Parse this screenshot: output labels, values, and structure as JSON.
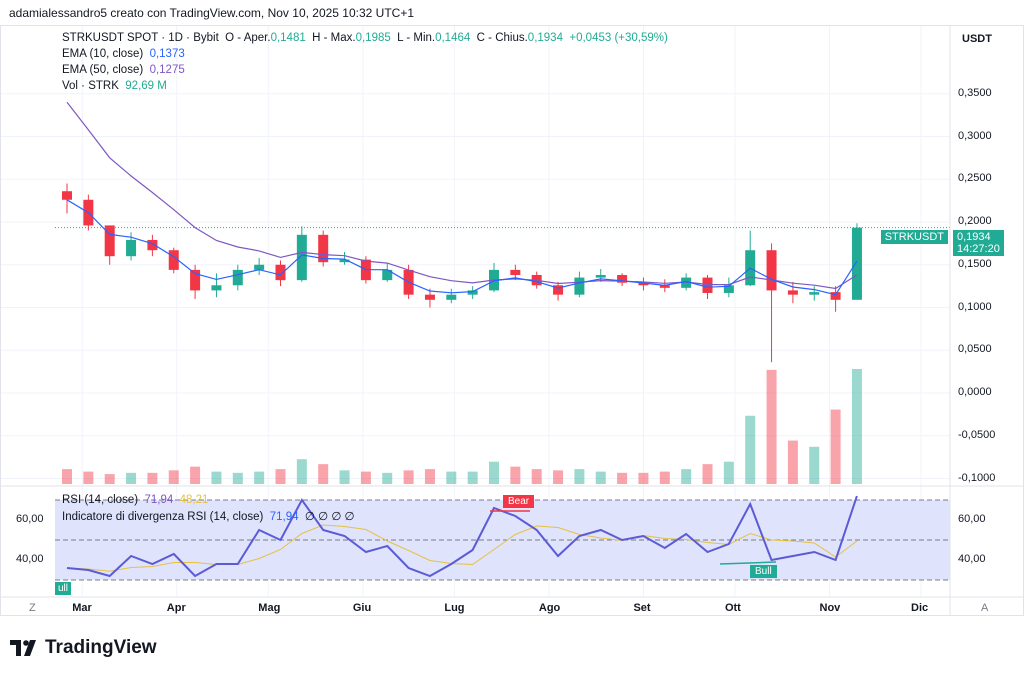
{
  "credit": "adamialessandro5 creato con TradingView.com, Nov 10, 2025 10:32 UTC+1",
  "legend": {
    "symbol": "STRKUSDT SPOT · 1D · Bybit",
    "open_label": "O - Aper.",
    "open": "0,1481",
    "high_label": "H - Max.",
    "high": "0,1985",
    "low_label": "L - Min.",
    "low": "0,1464",
    "close_label": "C - Chius.",
    "close": "0,1934",
    "change": "+0,0453 (+30,59%)",
    "ema10_label": "EMA (10, close)",
    "ema10": "0,1373",
    "ema50_label": "EMA (50, close)",
    "ema50": "0,1275",
    "vol_label": "Vol · STRK",
    "vol": "92,69 M"
  },
  "rsi_legend": {
    "rsi_label": "RSI (14, close)",
    "rsi": "71,94",
    "rsi_ma": "48,21",
    "div_label": "Indicatore di divergenza RSI (14, close)",
    "div_value": "71,94",
    "div_flags": "∅ ∅ ∅ ∅"
  },
  "price_axis": {
    "unit": "USDT",
    "ticks": [
      "0,3500",
      "0,3000",
      "0,2500",
      "0,2000",
      "0,1500",
      "0,1000",
      "0,0500",
      "0,0000",
      "-0,0500",
      "-0,1000"
    ],
    "tick_values": [
      0.35,
      0.3,
      0.25,
      0.2,
      0.15,
      0.1,
      0.05,
      0,
      -0.05,
      -0.1
    ],
    "last_symbol": "STRKUSDT",
    "last_price": "0,1934",
    "countdown": "14:27:20"
  },
  "rsi_axis": {
    "ticks": [
      "60,00",
      "40,00"
    ],
    "tick_values": [
      60,
      40
    ],
    "bands": [
      70,
      50,
      30
    ]
  },
  "time_axis": {
    "left_button": "Z",
    "right_button": "A",
    "ticks": [
      {
        "label": "Mar",
        "date": "2025-03-01"
      },
      {
        "label": "Apr",
        "date": "2025-04-01"
      },
      {
        "label": "Mag",
        "date": "2025-05-01"
      },
      {
        "label": "Giu",
        "date": "2025-06-01"
      },
      {
        "label": "Lug",
        "date": "2025-07-01"
      },
      {
        "label": "Ago",
        "date": "2025-08-01"
      },
      {
        "label": "Set",
        "date": "2025-09-01"
      },
      {
        "label": "Ott",
        "date": "2025-10-01"
      },
      {
        "label": "Nov",
        "date": "2025-11-01"
      },
      {
        "label": "Dic",
        "date": "2025-12-01"
      }
    ]
  },
  "divergence_labels": {
    "bear": "Bear",
    "bull": "Bull",
    "bull_left": "ull"
  },
  "logo": "TradingView",
  "colors": {
    "up": "#22ab94",
    "down": "#f23645",
    "ema10": "#2962ff",
    "ema50": "#7e57c2",
    "rsi": "#5b5bd6",
    "rsi_ma": "#e5c144",
    "rsi_bg": "#dfe3fb"
  },
  "chart_data": {
    "type": "candlestick",
    "symbol": "STRKUSDT",
    "ylim": [
      -0.1,
      0.37
    ],
    "dates": [
      "2025-02-24",
      "2025-03-03",
      "2025-03-10",
      "2025-03-17",
      "2025-03-24",
      "2025-03-31",
      "2025-04-07",
      "2025-04-14",
      "2025-04-21",
      "2025-04-28",
      "2025-05-05",
      "2025-05-12",
      "2025-05-19",
      "2025-05-26",
      "2025-06-02",
      "2025-06-09",
      "2025-06-16",
      "2025-06-23",
      "2025-06-30",
      "2025-07-07",
      "2025-07-14",
      "2025-07-21",
      "2025-07-28",
      "2025-08-04",
      "2025-08-11",
      "2025-08-18",
      "2025-08-25",
      "2025-09-01",
      "2025-09-08",
      "2025-09-15",
      "2025-09-22",
      "2025-09-29",
      "2025-10-06",
      "2025-10-13",
      "2025-10-20",
      "2025-10-27",
      "2025-11-03",
      "2025-11-10"
    ],
    "close": [
      0.226,
      0.196,
      0.16,
      0.179,
      0.167,
      0.144,
      0.12,
      0.126,
      0.144,
      0.15,
      0.132,
      0.185,
      0.153,
      0.156,
      0.132,
      0.144,
      0.115,
      0.109,
      0.115,
      0.12,
      0.144,
      0.138,
      0.126,
      0.115,
      0.135,
      0.138,
      0.129,
      0.126,
      0.123,
      0.135,
      0.117,
      0.126,
      0.167,
      0.12,
      0.115,
      0.118,
      0.109,
      0.1934
    ],
    "high": [
      0.245,
      0.232,
      0.195,
      0.188,
      0.185,
      0.17,
      0.15,
      0.14,
      0.15,
      0.158,
      0.155,
      0.195,
      0.19,
      0.165,
      0.16,
      0.152,
      0.15,
      0.122,
      0.122,
      0.125,
      0.152,
      0.15,
      0.142,
      0.13,
      0.142,
      0.145,
      0.14,
      0.135,
      0.133,
      0.14,
      0.138,
      0.135,
      0.19,
      0.175,
      0.13,
      0.125,
      0.125,
      0.1985
    ],
    "low": [
      0.21,
      0.19,
      0.15,
      0.155,
      0.16,
      0.14,
      0.11,
      0.112,
      0.12,
      0.138,
      0.125,
      0.13,
      0.148,
      0.15,
      0.128,
      0.13,
      0.11,
      0.1,
      0.105,
      0.11,
      0.118,
      0.132,
      0.122,
      0.108,
      0.112,
      0.13,
      0.125,
      0.12,
      0.118,
      0.12,
      0.11,
      0.112,
      0.125,
      0.036,
      0.105,
      0.108,
      0.095,
      0.1464
    ],
    "volume_m": [
      12,
      10,
      8,
      9,
      9,
      11,
      14,
      10,
      9,
      10,
      12,
      20,
      16,
      11,
      10,
      9,
      11,
      12,
      10,
      10,
      18,
      14,
      12,
      11,
      12,
      10,
      9,
      9,
      10,
      12,
      16,
      18,
      55,
      92,
      35,
      30,
      60,
      92.69
    ],
    "rsi": [
      36,
      35,
      32,
      42,
      38,
      43,
      32,
      38,
      38,
      55,
      50,
      70,
      55,
      52,
      44,
      47,
      36,
      32,
      38,
      45,
      66,
      62,
      55,
      42,
      52,
      55,
      50,
      52,
      46,
      53,
      44,
      48,
      68,
      40,
      42,
      44,
      40,
      71.94
    ]
  }
}
